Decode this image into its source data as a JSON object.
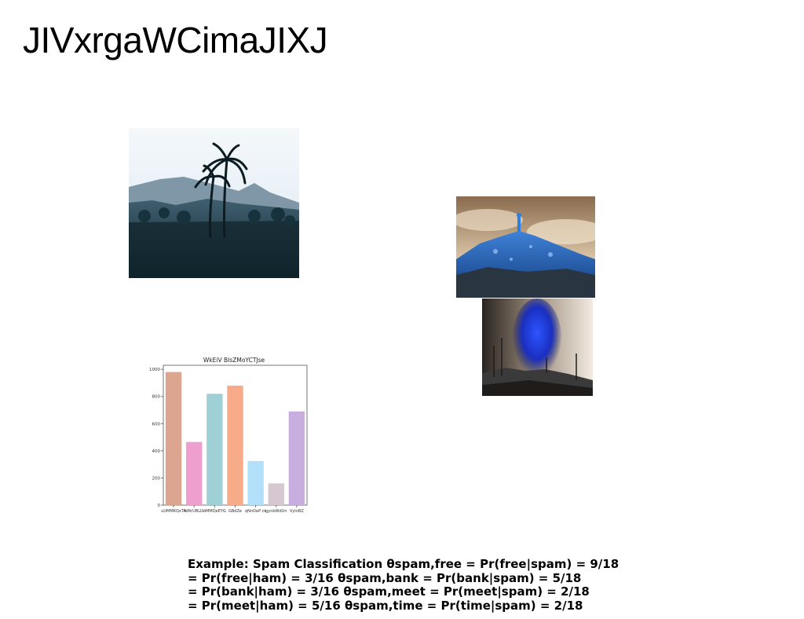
{
  "page": {
    "title": "JIVxrgaWCimaJIXJ"
  },
  "images": [
    {
      "name": "palm-tree-mountain-photo"
    },
    {
      "name": "blue-rocky-summit-photo"
    },
    {
      "name": "blue-smoke-volcano-photo"
    }
  ],
  "chart_data": {
    "type": "bar",
    "title": "WkEiV BIsZMoYCTJse",
    "categories": [
      "uUMMKQxTA",
      "fdRrUBLUi",
      "dMMQeEYG",
      "GBdZe",
      "qNnOeP ck",
      "gynbWdUn",
      "VyInBZ"
    ],
    "values": [
      980,
      465,
      820,
      880,
      325,
      160,
      690
    ],
    "colors": [
      "#dba590",
      "#ef9fce",
      "#9fd0d6",
      "#f8ab89",
      "#b2e0fa",
      "#d5c8d0",
      "#c8addf"
    ],
    "yticks": [
      0,
      200,
      400,
      600,
      800,
      1000
    ],
    "ylim": [
      0,
      1030
    ],
    "xlabel": "",
    "ylabel": ""
  },
  "caption": {
    "lines": [
      "Example: Spam Classification θspam,free = Pr(free|spam) = 9/18",
      "= Pr(free|ham) = 3/16 θspam,bank = Pr(bank|spam) = 5/18",
      "= Pr(bank|ham) = 3/16 θspam,meet = Pr(meet|spam) = 2/18",
      "= Pr(meet|ham) = 5/16 θspam,time = Pr(time|spam) = 2/18"
    ]
  }
}
